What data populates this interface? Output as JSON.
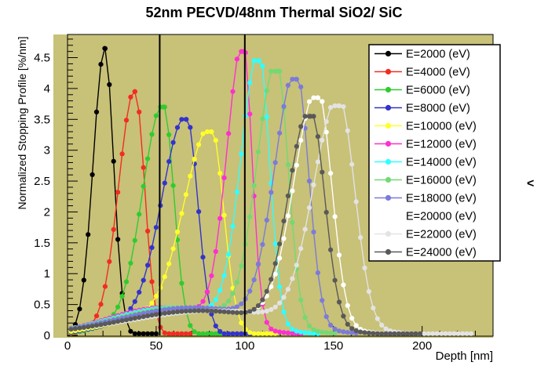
{
  "title": "52nm PECVD/48nm Thermal SiO2/ SiC",
  "side_glyph": "<",
  "colors": {
    "canvas_background": "#ffffff",
    "pad_background": "#c8c178",
    "frame_border": "#000000",
    "boundary_line": "#000000",
    "legend_background": "#ffffff",
    "legend_border": "#000000",
    "text": "#000000"
  },
  "axes": {
    "x": {
      "title": "Depth [nm]",
      "min": 0,
      "max": 240,
      "major_ticks": [
        0,
        50,
        100,
        150,
        200
      ],
      "major_labels": [
        "0",
        "50",
        "100",
        "150",
        "200"
      ],
      "minor_step": 10
    },
    "y": {
      "title": "Normalized Stopping Profile [%/nm]",
      "min": 0,
      "max": 4.875,
      "major_ticks": [
        0,
        0.5,
        1,
        1.5,
        2,
        2.5,
        3,
        3.5,
        4,
        4.5
      ],
      "major_labels": [
        "0",
        "0.5",
        "1",
        "1.5",
        "2",
        "2.5",
        "3",
        "3.5",
        "4",
        "4.5"
      ],
      "minor_step": 0.1
    }
  },
  "layer_boundaries_nm": [
    52,
    100
  ],
  "legend": {
    "position": "top-right",
    "entries": [
      "E=2000 (eV)",
      "E=4000 (eV)",
      "E=6000 (eV)",
      "E=8000 (eV)",
      "E=10000 (eV)",
      "E=12000 (eV)",
      "E=14000 (eV)",
      "E=16000 (eV)",
      "E=18000 (eV)",
      "E=20000 (eV)",
      "E=22000 (eV)",
      "E=24000 (eV)"
    ]
  },
  "chart_data": {
    "type": "line",
    "title": "52nm PECVD/48nm Thermal SiO2/ SiC",
    "xlabel": "Depth [nm]",
    "ylabel": "Normalized Stopping Profile [%/nm]",
    "xlim": [
      0,
      240
    ],
    "ylim": [
      0,
      4.875
    ],
    "grid": false,
    "legend_position": "top-right",
    "marker_style": "filled-circle-with-line",
    "series": [
      {
        "label": "E=2000 (eV)",
        "color": "#000000",
        "peak_x_nm": 21,
        "peak_y": 4.65,
        "sigma_left_nm": 6.5,
        "sigma_right_nm": 5.0,
        "shoulder_h": 0.0,
        "tail_end_nm": 50
      },
      {
        "label": "E=4000 (eV)",
        "color": "#f22c21",
        "peak_x_nm": 38,
        "peak_y": 3.95,
        "sigma_left_nm": 9.0,
        "sigma_right_nm": 5.5,
        "shoulder_h": 0.1,
        "tail_end_nm": 70
      },
      {
        "label": "E=6000 (eV)",
        "color": "#2fcc2f",
        "peak_x_nm": 54,
        "peak_y": 3.7,
        "sigma_left_nm": 11.5,
        "sigma_right_nm": 6.0,
        "shoulder_h": 0.15,
        "tail_end_nm": 88
      },
      {
        "label": "E=8000 (eV)",
        "color": "#3333cc",
        "peak_x_nm": 67,
        "peak_y": 3.5,
        "sigma_left_nm": 13.5,
        "sigma_right_nm": 6.5,
        "shoulder_h": 0.2,
        "tail_end_nm": 103
      },
      {
        "label": "E=10000 (eV)",
        "color": "#ffff2a",
        "peak_x_nm": 81,
        "peak_y": 3.3,
        "sigma_left_nm": 15.0,
        "sigma_right_nm": 7.0,
        "shoulder_h": 0.25,
        "tail_end_nm": 118
      },
      {
        "label": "E=12000 (eV)",
        "color": "#ff2fd0",
        "peak_x_nm": 99,
        "peak_y": 4.6,
        "sigma_left_nm": 9.0,
        "sigma_right_nm": 5.0,
        "shoulder_h": 0.45,
        "tail_end_nm": 132
      },
      {
        "label": "E=14000 (eV)",
        "color": "#2fffff",
        "peak_x_nm": 108,
        "peak_y": 4.45,
        "sigma_left_nm": 10.0,
        "sigma_right_nm": 6.0,
        "shoulder_h": 0.45,
        "tail_end_nm": 142
      },
      {
        "label": "E=16000 (eV)",
        "color": "#73d973",
        "peak_x_nm": 118,
        "peak_y": 4.28,
        "sigma_left_nm": 11.0,
        "sigma_right_nm": 6.5,
        "shoulder_h": 0.45,
        "tail_end_nm": 152
      },
      {
        "label": "E=18000 (eV)",
        "color": "#7b7bd9",
        "peak_x_nm": 129,
        "peak_y": 4.15,
        "sigma_left_nm": 12.0,
        "sigma_right_nm": 7.0,
        "shoulder_h": 0.45,
        "tail_end_nm": 163
      },
      {
        "label": "E=20000 (eV)",
        "color": "#ffffff",
        "peak_x_nm": 141,
        "peak_y": 3.85,
        "sigma_left_nm": 13.0,
        "sigma_right_nm": 8.0,
        "shoulder_h": 0.4,
        "tail_end_nm": 180
      },
      {
        "label": "E=22000 (eV)",
        "color": "#e3e3e3",
        "peak_x_nm": 153,
        "peak_y": 3.72,
        "sigma_left_nm": 14.0,
        "sigma_right_nm": 9.0,
        "shoulder_h": 0.4,
        "tail_end_nm": 229
      },
      {
        "label": "E=24000 (eV)",
        "color": "#595959",
        "peak_x_nm": 137,
        "peak_y": 3.55,
        "sigma_left_nm": 12.0,
        "sigma_right_nm": 8.0,
        "shoulder_h": 0.4,
        "tail_end_nm": 200
      }
    ]
  }
}
